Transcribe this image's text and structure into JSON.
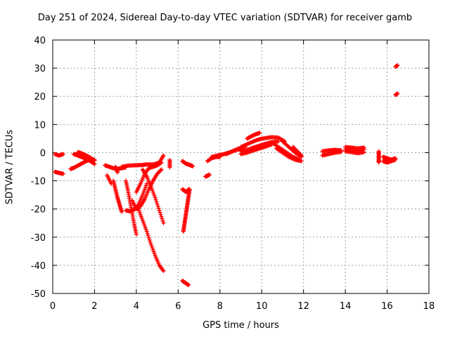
{
  "chart_data": {
    "type": "scatter",
    "title": "Day 251 of 2024, Sidereal Day-to-day VTEC variation (SDTVAR) for receiver gamb",
    "xlabel": "GPS time / hours",
    "ylabel": "SDTVAR / TECUs",
    "xlim": [
      0,
      18
    ],
    "ylim": [
      -50,
      40
    ],
    "xticks": [
      "0",
      "2",
      "4",
      "6",
      "8",
      "10",
      "12",
      "14",
      "16",
      "18"
    ],
    "yticks": [
      "-50",
      "-40",
      "-30",
      "-20",
      "-10",
      "0",
      "10",
      "20",
      "30",
      "40"
    ],
    "grid": true,
    "marker": "+",
    "color": "#ff0000",
    "tracks": [
      {
        "x": [
          0.1,
          0.3,
          0.5
        ],
        "y": [
          -0.5,
          -1.0,
          -0.5
        ]
      },
      {
        "x": [
          0.1,
          0.3,
          0.5
        ],
        "y": [
          -6.8,
          -7.2,
          -7.5
        ]
      },
      {
        "x": [
          0.85,
          1.0,
          1.2,
          1.4,
          1.6,
          1.8,
          2.0
        ],
        "y": [
          -5.8,
          -5.4,
          -4.6,
          -3.8,
          -3.0,
          -2.5,
          -2.5
        ]
      },
      {
        "x": [
          1.0,
          1.2,
          1.4,
          1.6,
          1.8,
          2.0
        ],
        "y": [
          -0.5,
          -1.0,
          -1.6,
          -2.2,
          -3.0,
          -4.0
        ]
      },
      {
        "x": [
          1.2,
          1.4,
          1.6,
          1.8,
          2.0
        ],
        "y": [
          0.2,
          -0.3,
          -1.0,
          -1.8,
          -2.8
        ]
      },
      {
        "x": [
          2.5,
          2.7,
          2.9,
          3.1,
          3.3,
          3.5
        ],
        "y": [
          -4.5,
          -5.0,
          -5.5,
          -5.8,
          -5.5,
          -5.2
        ]
      },
      {
        "x": [
          2.9,
          3.0,
          3.1,
          3.2,
          3.3
        ],
        "y": [
          -10.0,
          -13.0,
          -16.0,
          -18.5,
          -21.0
        ]
      },
      {
        "x": [
          2.6,
          2.8
        ],
        "y": [
          -8.0,
          -11.0
        ]
      },
      {
        "x": [
          3.0,
          3.1
        ],
        "y": [
          -5.0,
          -7.0
        ]
      },
      {
        "x": [
          3.5,
          3.6,
          3.7,
          3.8,
          3.9,
          4.0
        ],
        "y": [
          -10.0,
          -13.5,
          -17.5,
          -21.5,
          -25.5,
          -29.0
        ]
      },
      {
        "x": [
          3.5,
          3.7,
          3.9,
          4.1,
          4.3,
          4.5
        ],
        "y": [
          -20.5,
          -20.8,
          -20.3,
          -18.5,
          -15.0,
          -11.0
        ]
      },
      {
        "x": [
          3.8,
          4.0,
          4.2,
          4.4,
          4.6,
          4.8,
          5.0,
          5.2
        ],
        "y": [
          -17.0,
          -20.0,
          -19.0,
          -16.5,
          -13.0,
          -10.0,
          -7.5,
          -6.0
        ]
      },
      {
        "x": [
          4.0,
          4.2,
          4.4,
          4.6,
          4.8,
          5.0,
          5.2
        ],
        "y": [
          -14.0,
          -11.0,
          -7.5,
          -5.5,
          -5.0,
          -4.5,
          -3.5
        ]
      },
      {
        "x": [
          3.3,
          3.6,
          3.9,
          4.2,
          4.5,
          4.8,
          5.1,
          5.3
        ],
        "y": [
          -5.0,
          -4.6,
          -4.5,
          -4.4,
          -4.2,
          -4.2,
          -3.5,
          -1.0
        ]
      },
      {
        "x": [
          4.1,
          4.3,
          4.5,
          4.7,
          4.9,
          5.1,
          5.3
        ],
        "y": [
          -20.0,
          -24.0,
          -28.0,
          -32.5,
          -36.5,
          -40.0,
          -42.0
        ]
      },
      {
        "x": [
          4.3,
          4.5,
          4.7,
          4.9,
          5.1,
          5.3
        ],
        "y": [
          -6.0,
          -8.5,
          -12.0,
          -16.0,
          -20.5,
          -25.0
        ]
      },
      {
        "x": [
          5.6,
          5.6
        ],
        "y": [
          -2.6,
          -5.2
        ]
      },
      {
        "x": [
          6.2,
          6.3,
          6.4,
          6.5
        ],
        "y": [
          -45.5,
          -46.0,
          -46.5,
          -47.0
        ]
      },
      {
        "x": [
          6.2,
          6.3,
          6.4,
          6.5
        ],
        "y": [
          -13.0,
          -13.5,
          -14.0,
          -13.0
        ]
      },
      {
        "x": [
          6.25,
          6.3,
          6.35,
          6.4,
          6.45,
          6.5,
          6.55
        ],
        "y": [
          -28.0,
          -25.5,
          -23.0,
          -20.5,
          -18.0,
          -15.5,
          -13.0
        ]
      },
      {
        "x": [
          6.2,
          6.3,
          6.4,
          6.5,
          6.6,
          6.7
        ],
        "y": [
          -3.0,
          -3.5,
          -4.0,
          -4.2,
          -4.5,
          -4.8
        ]
      },
      {
        "x": [
          7.3,
          7.4,
          7.5
        ],
        "y": [
          -8.5,
          -8.2,
          -7.8
        ]
      },
      {
        "x": [
          7.4,
          7.6,
          7.8,
          8.0
        ],
        "y": [
          -3.0,
          -2.0,
          -1.5,
          -1.5
        ]
      },
      {
        "x": [
          7.6,
          7.9,
          8.2,
          8.5,
          8.8,
          9.0
        ],
        "y": [
          -1.5,
          -1.0,
          -0.5,
          0.2,
          1.0,
          1.5
        ]
      },
      {
        "x": [
          8.3,
          8.6,
          8.9,
          9.2
        ],
        "y": [
          -0.5,
          0.5,
          1.5,
          2.0
        ]
      },
      {
        "x": [
          9.0,
          9.3,
          9.6,
          9.9,
          10.2,
          10.5,
          10.8,
          11.1
        ],
        "y": [
          2.0,
          3.0,
          4.0,
          4.8,
          5.2,
          5.5,
          5.3,
          4.0
        ]
      },
      {
        "x": [
          9.0,
          9.3,
          9.6,
          9.9,
          10.2,
          10.5,
          10.8
        ],
        "y": [
          0.5,
          1.0,
          1.8,
          2.5,
          3.2,
          3.8,
          4.0
        ]
      },
      {
        "x": [
          9.0,
          9.3,
          9.6,
          9.9,
          10.2,
          10.5
        ],
        "y": [
          -0.5,
          0.0,
          0.8,
          1.5,
          2.2,
          3.0
        ]
      },
      {
        "x": [
          9.3,
          9.5,
          9.7,
          9.9
        ],
        "y": [
          5.0,
          5.8,
          6.5,
          7.0
        ]
      },
      {
        "x": [
          10.7,
          11.0,
          11.3,
          11.6,
          11.9
        ],
        "y": [
          1.5,
          0.0,
          -1.5,
          -2.5,
          -3.0
        ]
      },
      {
        "x": [
          10.6,
          10.9,
          11.2,
          11.5,
          11.8
        ],
        "y": [
          3.0,
          1.5,
          0.0,
          -1.5,
          -2.5
        ]
      },
      {
        "x": [
          11.0,
          11.3,
          11.6,
          11.9
        ],
        "y": [
          4.0,
          2.0,
          0.0,
          -1.5
        ]
      },
      {
        "x": [
          11.5,
          11.7,
          11.9
        ],
        "y": [
          2.0,
          0.5,
          -1.0
        ]
      },
      {
        "x": [
          12.9,
          13.2,
          13.5,
          13.8
        ],
        "y": [
          -1.0,
          -0.5,
          0.0,
          0.3
        ]
      },
      {
        "x": [
          12.9,
          13.2,
          13.5,
          13.8
        ],
        "y": [
          0.5,
          0.8,
          1.0,
          0.8
        ]
      },
      {
        "x": [
          14.0,
          14.3,
          14.6,
          14.9
        ],
        "y": [
          2.0,
          1.8,
          1.5,
          1.8
        ]
      },
      {
        "x": [
          14.0,
          14.3,
          14.6,
          14.9
        ],
        "y": [
          0.5,
          0.2,
          -0.2,
          0.2
        ]
      },
      {
        "x": [
          14.0,
          14.3,
          14.6,
          14.9
        ],
        "y": [
          1.2,
          1.0,
          0.8,
          1.2
        ]
      },
      {
        "x": [
          15.6,
          15.6,
          15.6
        ],
        "y": [
          0.5,
          -1.5,
          -3.5
        ]
      },
      {
        "x": [
          15.8,
          16.0,
          16.2,
          16.4
        ],
        "y": [
          -1.5,
          -2.0,
          -2.5,
          -2.0
        ]
      },
      {
        "x": [
          15.8,
          16.0,
          16.2,
          16.4
        ],
        "y": [
          -3.0,
          -3.5,
          -3.0,
          -2.5
        ]
      },
      {
        "x": [
          16.4,
          16.5
        ],
        "y": [
          30.5,
          31.0
        ]
      },
      {
        "x": [
          16.4,
          16.5
        ],
        "y": [
          20.5,
          21.0
        ]
      }
    ]
  }
}
